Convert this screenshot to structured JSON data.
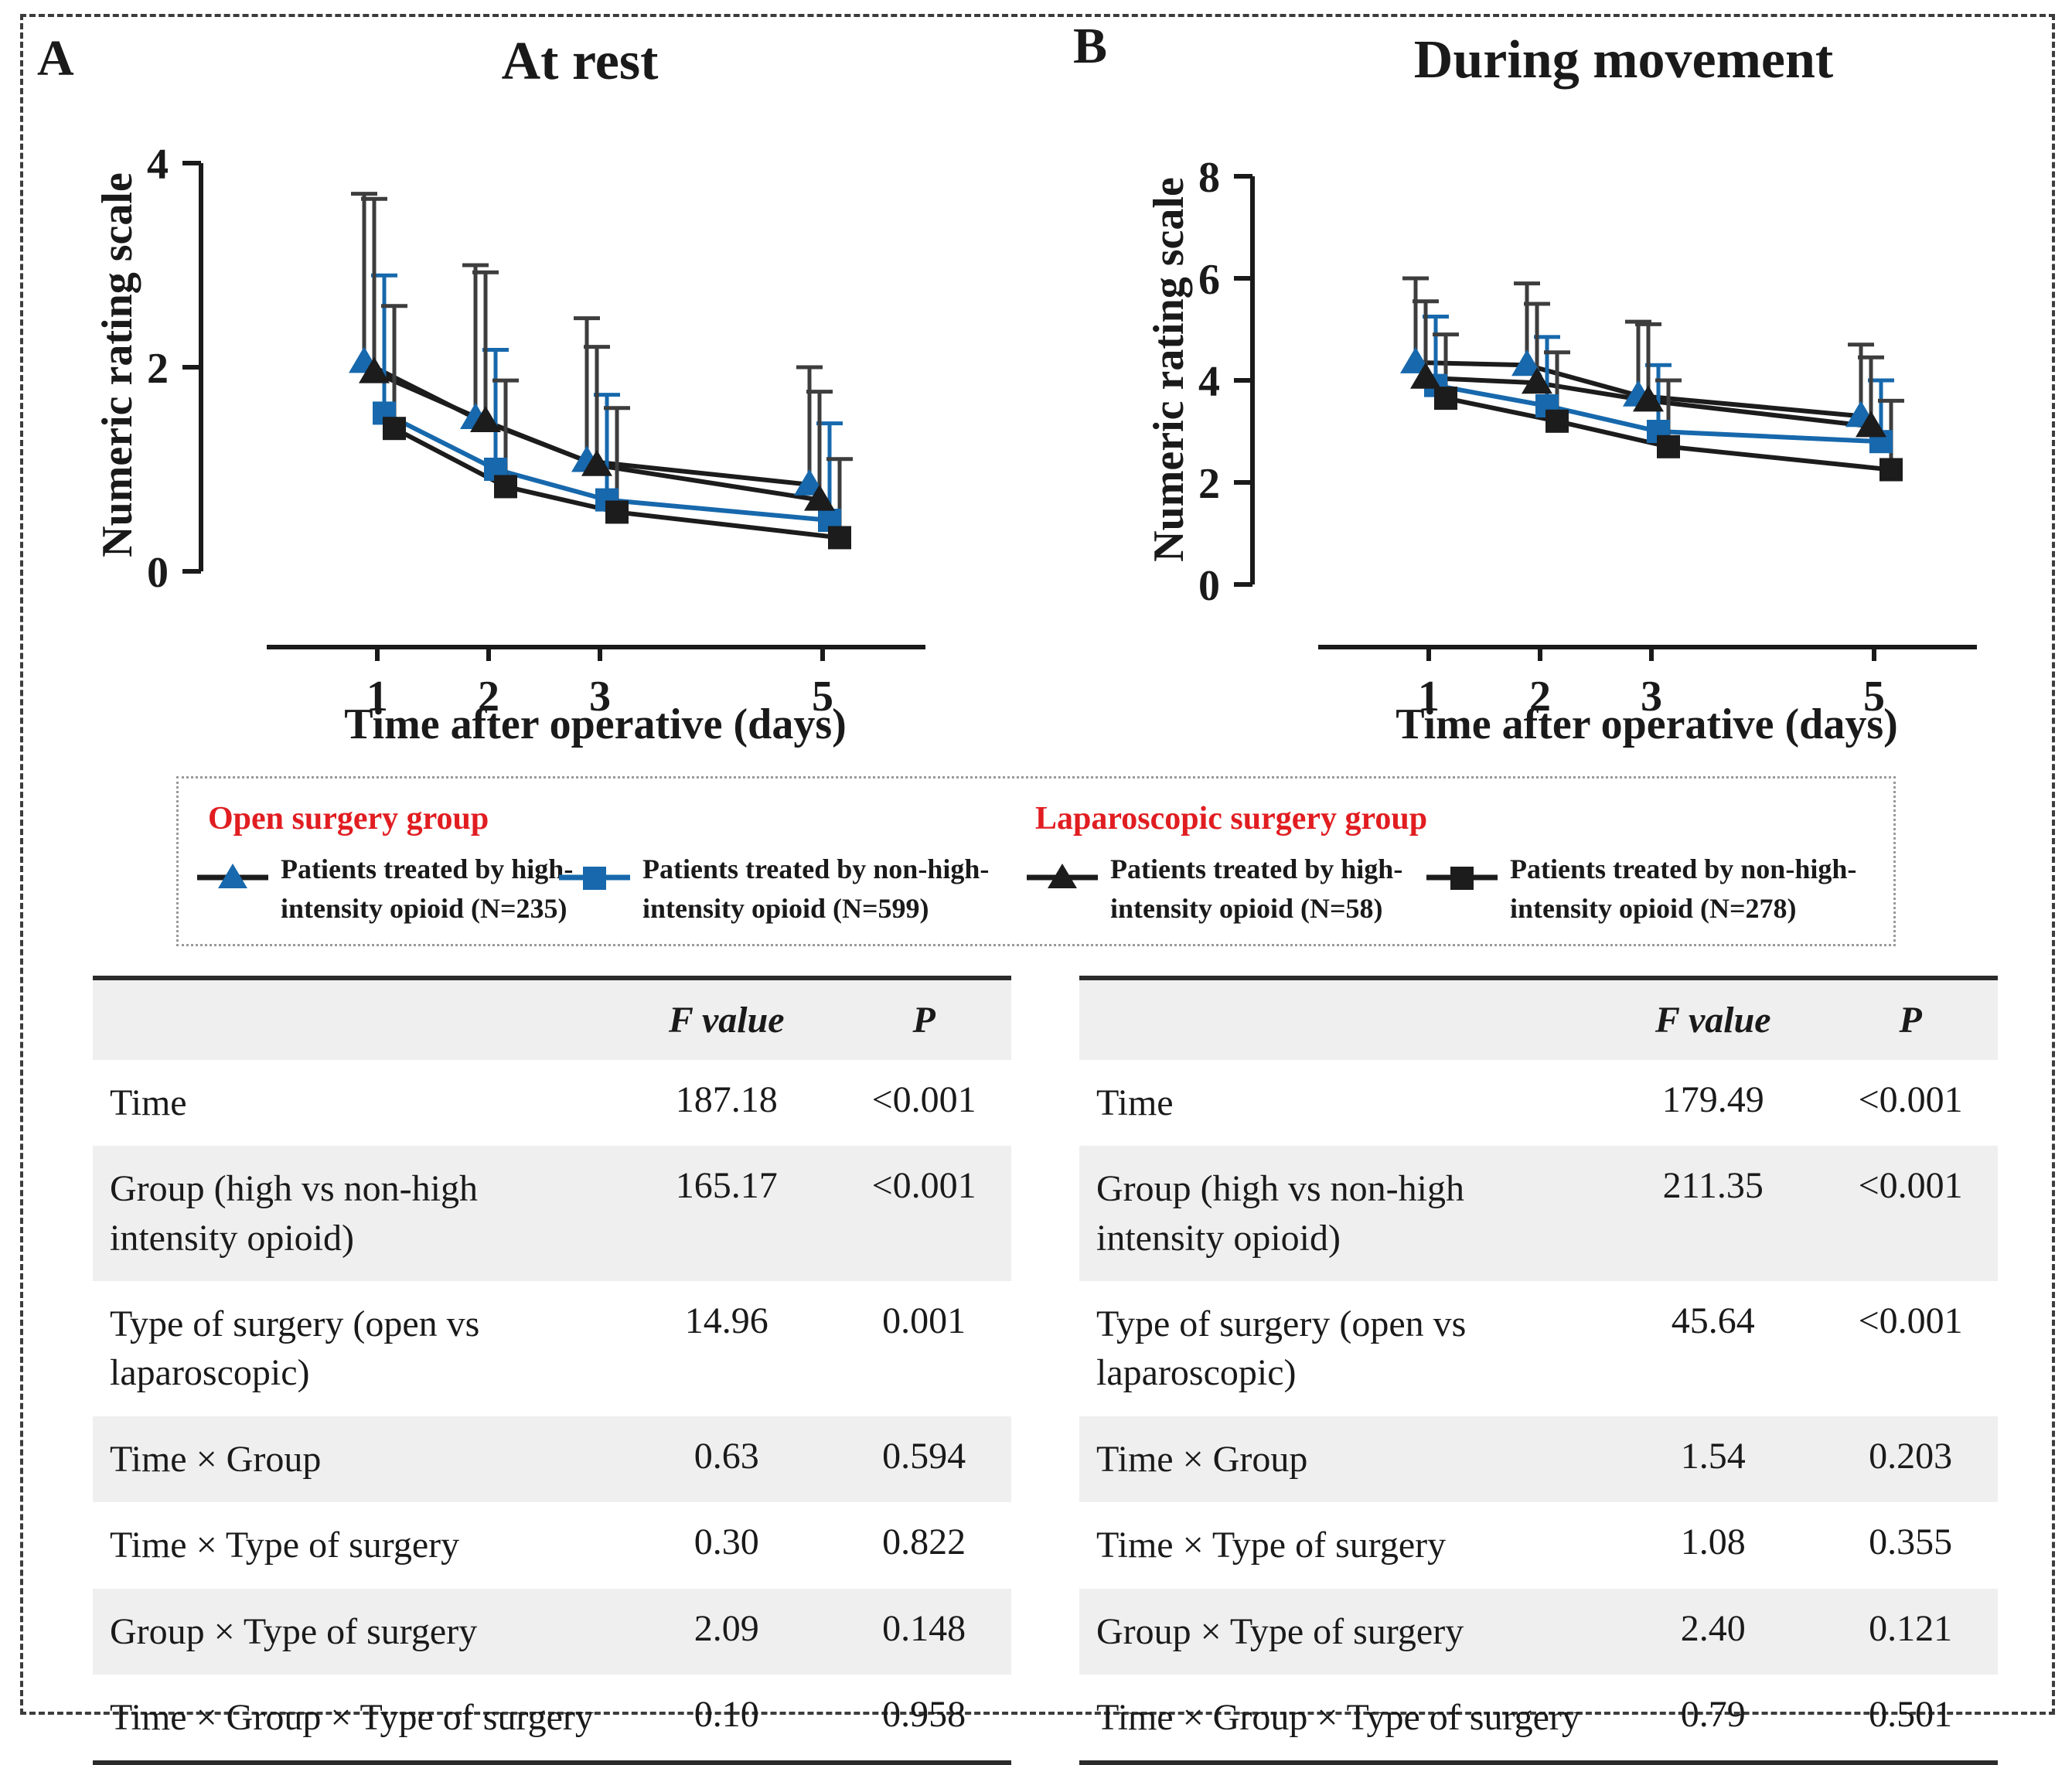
{
  "figure": {
    "panelA": {
      "label": "A",
      "title": "At rest"
    },
    "panelB": {
      "label": "B",
      "title": "During movement"
    },
    "xlabel": "Time after operative (days)",
    "ylabel": "Numeric rating scale"
  },
  "colors": {
    "blue": "#1768AC",
    "black": "#1c1c1c",
    "error_black": "#3d3d3d",
    "red": "#e11d21",
    "row_shade": "#efefef"
  },
  "chart_data": [
    {
      "id": "A",
      "type": "line",
      "title": "At rest",
      "xlabel": "Time after operative (days)",
      "ylabel": "Numeric rating scale",
      "x": [
        1,
        2,
        3,
        5
      ],
      "ylim": [
        0,
        4
      ],
      "yticks": [
        0,
        2,
        4
      ],
      "grid": false,
      "error_bars": "upper only",
      "series": [
        {
          "name": "Open surgery, high-intensity opioid (N=235)",
          "marker": "triangle",
          "marker_color": "blue",
          "line_color": "black",
          "error_color": "error_black",
          "values": [
            2.05,
            1.5,
            1.08,
            0.85
          ],
          "upper": [
            3.7,
            3.0,
            2.48,
            2.0
          ]
        },
        {
          "name": "Open surgery, non-high-intensity opioid (N=599)",
          "marker": "square",
          "marker_color": "blue",
          "line_color": "blue",
          "error_color": "blue",
          "values": [
            1.55,
            1.0,
            0.7,
            0.5
          ],
          "upper": [
            2.9,
            2.17,
            1.73,
            1.45
          ]
        },
        {
          "name": "Laparoscopic surgery, high-intensity opioid (N=58)",
          "marker": "triangle",
          "marker_color": "black",
          "line_color": "black",
          "error_color": "error_black",
          "values": [
            1.95,
            1.47,
            1.04,
            0.7
          ],
          "upper": [
            3.65,
            2.93,
            2.2,
            1.76
          ]
        },
        {
          "name": "Laparoscopic surgery, non-high-intensity opioid (N=278)",
          "marker": "square",
          "marker_color": "black",
          "line_color": "black",
          "error_color": "error_black",
          "values": [
            1.4,
            0.83,
            0.58,
            0.33
          ],
          "upper": [
            2.6,
            1.87,
            1.6,
            1.1
          ]
        }
      ]
    },
    {
      "id": "B",
      "type": "line",
      "title": "During movement",
      "xlabel": "Time after operative (days)",
      "ylabel": "Numeric rating scale",
      "x": [
        1,
        2,
        3,
        5
      ],
      "ylim": [
        0,
        8
      ],
      "yticks": [
        0,
        2,
        4,
        6,
        8
      ],
      "grid": false,
      "error_bars": "upper only",
      "series": [
        {
          "name": "Open surgery, high-intensity opioid (N=235)",
          "marker": "triangle",
          "marker_color": "blue",
          "line_color": "black",
          "error_color": "error_black",
          "values": [
            4.35,
            4.3,
            3.7,
            3.3
          ],
          "upper": [
            6.0,
            5.9,
            5.15,
            4.7
          ]
        },
        {
          "name": "Open surgery, non-high-intensity opioid (N=599)",
          "marker": "square",
          "marker_color": "blue",
          "line_color": "blue",
          "error_color": "blue",
          "values": [
            3.9,
            3.5,
            3.0,
            2.8
          ],
          "upper": [
            5.25,
            4.85,
            4.3,
            4.0
          ]
        },
        {
          "name": "Laparoscopic surgery, high-intensity opioid (N=58)",
          "marker": "triangle",
          "marker_color": "black",
          "line_color": "black",
          "error_color": "error_black",
          "values": [
            4.05,
            3.95,
            3.6,
            3.1
          ],
          "upper": [
            5.55,
            5.5,
            5.1,
            4.45
          ]
        },
        {
          "name": "Laparoscopic surgery, non-high-intensity opioid (N=278)",
          "marker": "square",
          "marker_color": "black",
          "line_color": "black",
          "error_color": "error_black",
          "values": [
            3.65,
            3.2,
            2.7,
            2.25
          ],
          "upper": [
            4.9,
            4.55,
            4.0,
            3.6
          ]
        }
      ]
    }
  ],
  "legend": {
    "groups": [
      {
        "title": "Open surgery group",
        "entries": [
          {
            "marker": "triangle",
            "marker_color": "blue",
            "line_color": "black",
            "line1": "Patients treated by high-",
            "line2": "intensity opioid (N=235)"
          },
          {
            "marker": "square",
            "marker_color": "blue",
            "line_color": "blue",
            "line1": "Patients treated by non-high-",
            "line2": "intensity opioid (N=599)"
          }
        ]
      },
      {
        "title": "Laparoscopic surgery group",
        "entries": [
          {
            "marker": "triangle",
            "marker_color": "black",
            "line_color": "black",
            "line1": "Patients treated by high-",
            "line2": "intensity opioid (N=58)"
          },
          {
            "marker": "square",
            "marker_color": "black",
            "line_color": "black",
            "line1": "Patients treated by non-high-",
            "line2": "intensity opioid (N=278)"
          }
        ]
      }
    ]
  },
  "tables": [
    {
      "id": "left",
      "headers": [
        "",
        "F value",
        "P"
      ],
      "rows": [
        {
          "label": "Time",
          "f": "187.18",
          "p": "<0.001"
        },
        {
          "label": "Group (high vs non-high intensity opioid)",
          "f": "165.17",
          "p": "<0.001"
        },
        {
          "label": "Type of surgery (open vs laparoscopic)",
          "f": "14.96",
          "p": "0.001"
        },
        {
          "label": "Time ×  Group",
          "f": "0.63",
          "p": "0.594"
        },
        {
          "label": "Time × Type of surgery",
          "f": "0.30",
          "p": "0.822"
        },
        {
          "label": "Group ×  Type of surgery",
          "f": "2.09",
          "p": "0.148"
        },
        {
          "label": "Time ×  Group ×  Type of surgery",
          "f": "0.10",
          "p": "0.958"
        }
      ]
    },
    {
      "id": "right",
      "headers": [
        "",
        "F value",
        "P"
      ],
      "rows": [
        {
          "label": "Time",
          "f": "179.49",
          "p": "<0.001"
        },
        {
          "label": "Group (high vs non-high intensity opioid)",
          "f": "211.35",
          "p": "<0.001"
        },
        {
          "label": "Type of surgery (open vs laparoscopic)",
          "f": "45.64",
          "p": "<0.001"
        },
        {
          "label": "Time ×  Group",
          "f": "1.54",
          "p": "0.203"
        },
        {
          "label": "Time ×  Type of surgery",
          "f": "1.08",
          "p": "0.355"
        },
        {
          "label": "Group × Type of surgery",
          "f": "2.40",
          "p": "0.121"
        },
        {
          "label": "Time ×  Group ×  Type of surgery",
          "f": "0.79",
          "p": "0.501"
        }
      ]
    }
  ]
}
